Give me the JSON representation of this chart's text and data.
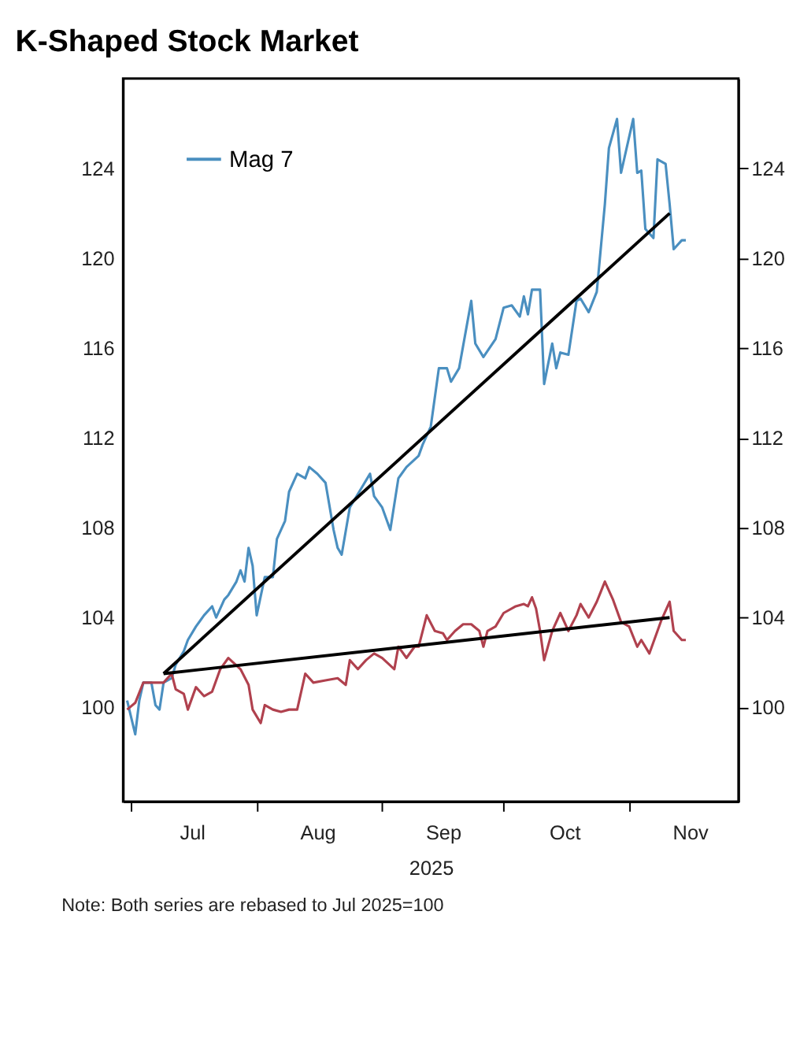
{
  "chart_data": {
    "type": "line",
    "title": "K-Shaped Stock Market",
    "xlabel": "2025",
    "annotations": [
      "Note: Both series are rebased to Jul 2025=100"
    ],
    "xlim": [
      "2025-06-29",
      "2025-11-28"
    ],
    "xticks": [
      {
        "value": "2025-07-01",
        "label": null
      },
      {
        "value": "2025-07-16",
        "label": "Jul"
      },
      {
        "value": "2025-08-01",
        "label": null
      },
      {
        "value": "2025-08-16",
        "label": "Aug"
      },
      {
        "value": "2025-09-01",
        "label": null
      },
      {
        "value": "2025-09-16",
        "label": "Sep"
      },
      {
        "value": "2025-10-01",
        "label": null
      },
      {
        "value": "2025-10-16",
        "label": "Oct"
      },
      {
        "value": "2025-11-01",
        "label": null
      },
      {
        "value": "2025-11-16",
        "label": "Nov"
      }
    ],
    "ylim": [
      95.8,
      128
    ],
    "yticks": [
      100,
      104,
      108,
      112,
      116,
      120,
      124
    ],
    "y2lim": [
      95.8,
      128
    ],
    "y2ticks": [
      100,
      104,
      108,
      112,
      116,
      120,
      124
    ],
    "grid": false,
    "legend": "top left",
    "line_style": "solid",
    "marker": "none",
    "series": [
      {
        "name": "Mag 7",
        "color": "#4a8fc0",
        "x": [
          "2025-06-30",
          "2025-07-02",
          "2025-07-03",
          "2025-07-04",
          "2025-07-06",
          "2025-07-07",
          "2025-07-08",
          "2025-07-09",
          "2025-07-11",
          "2025-07-12",
          "2025-07-14",
          "2025-07-15",
          "2025-07-17",
          "2025-07-19",
          "2025-07-21",
          "2025-07-22",
          "2025-07-24",
          "2025-07-25",
          "2025-07-27",
          "2025-07-28",
          "2025-07-29",
          "2025-07-30",
          "2025-07-31",
          "2025-08-01",
          "2025-08-03",
          "2025-08-05",
          "2025-08-06",
          "2025-08-08",
          "2025-08-09",
          "2025-08-11",
          "2025-08-13",
          "2025-08-14",
          "2025-08-16",
          "2025-08-18",
          "2025-08-20",
          "2025-08-21",
          "2025-08-22",
          "2025-08-24",
          "2025-08-27",
          "2025-08-29",
          "2025-08-30",
          "2025-09-01",
          "2025-09-03",
          "2025-09-05",
          "2025-09-07",
          "2025-09-10",
          "2025-09-11",
          "2025-09-13",
          "2025-09-15",
          "2025-09-17",
          "2025-09-18",
          "2025-09-20",
          "2025-09-23",
          "2025-09-24",
          "2025-09-26",
          "2025-09-29",
          "2025-10-01",
          "2025-10-03",
          "2025-10-05",
          "2025-10-06",
          "2025-10-07",
          "2025-10-08",
          "2025-10-10",
          "2025-10-11",
          "2025-10-13",
          "2025-10-14",
          "2025-10-15",
          "2025-10-17",
          "2025-10-19",
          "2025-10-20",
          "2025-10-22",
          "2025-10-24",
          "2025-10-26",
          "2025-10-27",
          "2025-10-29",
          "2025-10-30",
          "2025-11-02",
          "2025-11-03",
          "2025-11-04",
          "2025-11-05",
          "2025-11-07",
          "2025-11-08",
          "2025-11-10",
          "2025-11-11",
          "2025-11-12",
          "2025-11-14",
          "2025-11-15"
        ],
        "values": [
          100.3,
          98.8,
          100.3,
          101.1,
          101.1,
          100.1,
          99.9,
          101.1,
          101.3,
          101.9,
          102.5,
          103.0,
          103.6,
          104.1,
          104.5,
          104.0,
          104.8,
          105.0,
          105.6,
          106.1,
          105.6,
          107.1,
          106.3,
          104.1,
          105.8,
          105.8,
          107.5,
          108.3,
          109.6,
          110.4,
          110.2,
          110.7,
          110.4,
          110.0,
          107.9,
          107.1,
          106.8,
          108.9,
          109.8,
          110.4,
          109.4,
          108.9,
          107.9,
          110.2,
          110.7,
          111.2,
          111.7,
          112.5,
          115.1,
          115.1,
          114.5,
          115.1,
          118.1,
          116.2,
          115.6,
          116.4,
          117.8,
          117.9,
          117.4,
          118.3,
          117.5,
          118.6,
          118.6,
          114.4,
          116.2,
          115.1,
          115.8,
          115.7,
          118.1,
          118.2,
          117.6,
          118.5,
          122.4,
          124.9,
          126.2,
          123.8,
          126.2,
          123.8,
          123.9,
          121.3,
          120.9,
          124.4,
          124.2,
          122.4,
          120.4,
          120.8,
          120.8
        ]
      },
      {
        "color": "#b0414e",
        "x": [
          "2025-06-30",
          "2025-07-02",
          "2025-07-04",
          "2025-07-06",
          "2025-07-09",
          "2025-07-11",
          "2025-07-12",
          "2025-07-14",
          "2025-07-15",
          "2025-07-17",
          "2025-07-19",
          "2025-07-21",
          "2025-07-23",
          "2025-07-25",
          "2025-07-28",
          "2025-07-30",
          "2025-07-31",
          "2025-08-02",
          "2025-08-03",
          "2025-08-05",
          "2025-08-07",
          "2025-08-09",
          "2025-08-11",
          "2025-08-13",
          "2025-08-15",
          "2025-08-18",
          "2025-08-21",
          "2025-08-23",
          "2025-08-24",
          "2025-08-26",
          "2025-08-28",
          "2025-08-30",
          "2025-09-01",
          "2025-09-04",
          "2025-09-05",
          "2025-09-07",
          "2025-09-09",
          "2025-09-10",
          "2025-09-12",
          "2025-09-14",
          "2025-09-16",
          "2025-09-17",
          "2025-09-19",
          "2025-09-21",
          "2025-09-23",
          "2025-09-25",
          "2025-09-26",
          "2025-09-27",
          "2025-09-29",
          "2025-10-01",
          "2025-10-04",
          "2025-10-06",
          "2025-10-07",
          "2025-10-08",
          "2025-10-09",
          "2025-10-10",
          "2025-10-11",
          "2025-10-13",
          "2025-10-15",
          "2025-10-17",
          "2025-10-19",
          "2025-10-20",
          "2025-10-22",
          "2025-10-24",
          "2025-10-26",
          "2025-10-28",
          "2025-10-30",
          "2025-11-01",
          "2025-11-03",
          "2025-11-04",
          "2025-11-06",
          "2025-11-07",
          "2025-11-09",
          "2025-11-11",
          "2025-11-12",
          "2025-11-14",
          "2025-11-15"
        ],
        "values": [
          99.9,
          100.2,
          101.1,
          101.1,
          101.1,
          101.5,
          100.8,
          100.6,
          99.9,
          100.9,
          100.5,
          100.7,
          101.7,
          102.2,
          101.7,
          101.0,
          99.9,
          99.3,
          100.1,
          99.9,
          99.8,
          99.9,
          99.9,
          101.5,
          101.1,
          101.2,
          101.3,
          101.0,
          102.1,
          101.7,
          102.1,
          102.4,
          102.2,
          101.7,
          102.7,
          102.2,
          102.7,
          102.7,
          104.1,
          103.4,
          103.3,
          103.0,
          103.4,
          103.7,
          103.7,
          103.4,
          102.7,
          103.4,
          103.6,
          104.2,
          104.5,
          104.6,
          104.5,
          104.9,
          104.4,
          103.4,
          102.1,
          103.4,
          104.2,
          103.4,
          104.1,
          104.6,
          104.0,
          104.7,
          105.6,
          104.8,
          103.8,
          103.6,
          102.7,
          103.0,
          102.4,
          102.9,
          103.9,
          104.7,
          103.4,
          103.0,
          103.0
        ]
      },
      {
        "color": "#000000",
        "x": [
          "2025-07-09",
          "2025-11-11"
        ],
        "values": [
          101.5,
          122.0
        ]
      },
      {
        "color": "#000000",
        "x": [
          "2025-07-09",
          "2025-11-11"
        ],
        "values": [
          101.5,
          104.0
        ]
      }
    ]
  }
}
